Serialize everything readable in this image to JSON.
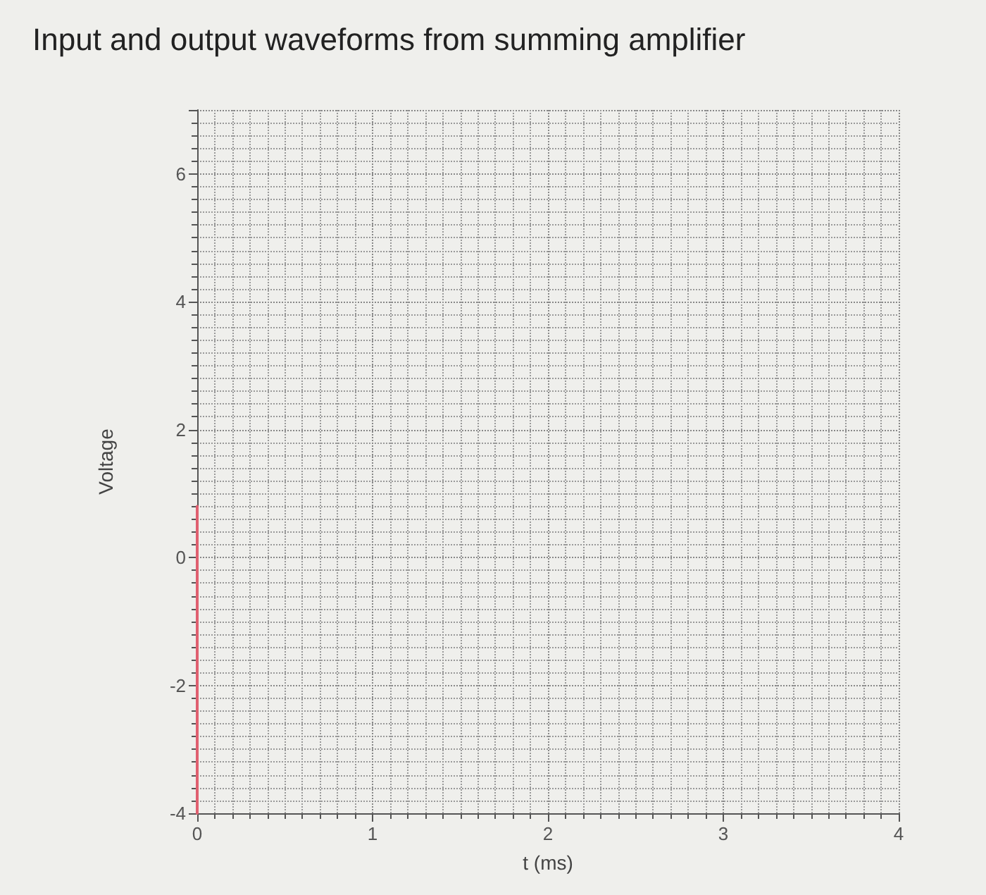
{
  "chart_data": {
    "type": "line",
    "title": "Input and output waveforms from summing amplifier",
    "xlabel": "t (ms)",
    "ylabel": "Voltage",
    "series": [
      {
        "x": [
          0,
          0
        ],
        "values": [
          -4,
          0.8
        ],
        "color": "#e06070"
      }
    ],
    "xlim": [
      0,
      4
    ],
    "xticks": [
      0,
      1,
      2,
      3,
      4
    ],
    "ylim": [
      -4,
      7
    ],
    "yticks": [
      -4,
      -2,
      0,
      2,
      4,
      6
    ],
    "grid": true,
    "marker": "none",
    "line_style": "solid"
  }
}
